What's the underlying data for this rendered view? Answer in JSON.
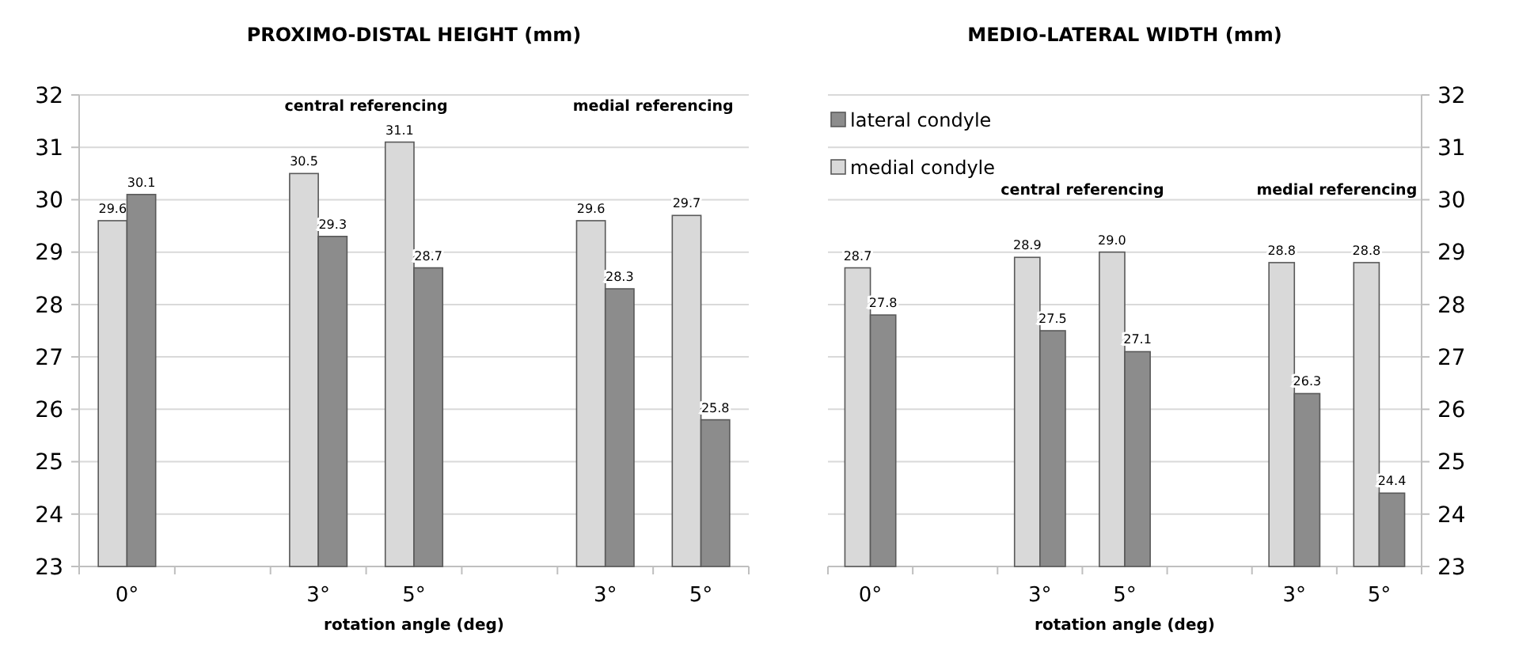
{
  "chart_data": [
    {
      "type": "bar",
      "title": "PROXIMO-DISTAL HEIGHT (mm)",
      "xlabel": "rotation angle (deg)",
      "categories": [
        "0°",
        null,
        "3°",
        "5°",
        null,
        "3°",
        "5°"
      ],
      "series": [
        {
          "color": "#d9d9d9",
          "values": [
            29.6,
            null,
            30.5,
            31.1,
            null,
            29.6,
            29.7
          ]
        },
        {
          "color": "#8c8c8c",
          "values": [
            30.1,
            null,
            29.3,
            28.7,
            null,
            28.3,
            25.8
          ]
        }
      ],
      "ylim": [
        23,
        32
      ],
      "yticks": [
        23,
        24,
        25,
        26,
        27,
        28,
        29,
        30,
        31,
        32
      ],
      "grid": "y",
      "data_labels": true,
      "legend": false,
      "annotations": [
        "central referencing",
        "medial referencing"
      ]
    },
    {
      "type": "bar",
      "title": "MEDIO-LATERAL WIDTH (mm)",
      "xlabel": "rotation angle (deg)",
      "categories": [
        "0°",
        null,
        "3°",
        "5°",
        null,
        "3°",
        "5°"
      ],
      "series": [
        {
          "name": "medial condyle",
          "color": "#d9d9d9",
          "values": [
            28.7,
            null,
            28.9,
            29.0,
            null,
            28.8,
            28.8
          ],
          "value_labels": [
            "28.7",
            null,
            "28.9",
            "29.0",
            null,
            "28.8",
            "28.8"
          ],
          "axis": "y2"
        },
        {
          "name": "lateral condyle",
          "color": "#8c8c8c",
          "values": [
            27.8,
            null,
            27.5,
            27.1,
            null,
            26.3,
            24.4
          ],
          "value_labels": [
            "27.8",
            null,
            "27.5",
            "27.1",
            null,
            "26.3",
            "24.4"
          ],
          "axis": "y2"
        }
      ],
      "y2lim": [
        23,
        32
      ],
      "y2ticks": [
        23,
        24,
        25,
        26,
        27,
        28,
        29,
        30,
        31,
        32
      ],
      "grid": "y",
      "legend": "top left",
      "annotations": [
        "central referencing",
        "medial referencing"
      ]
    }
  ]
}
